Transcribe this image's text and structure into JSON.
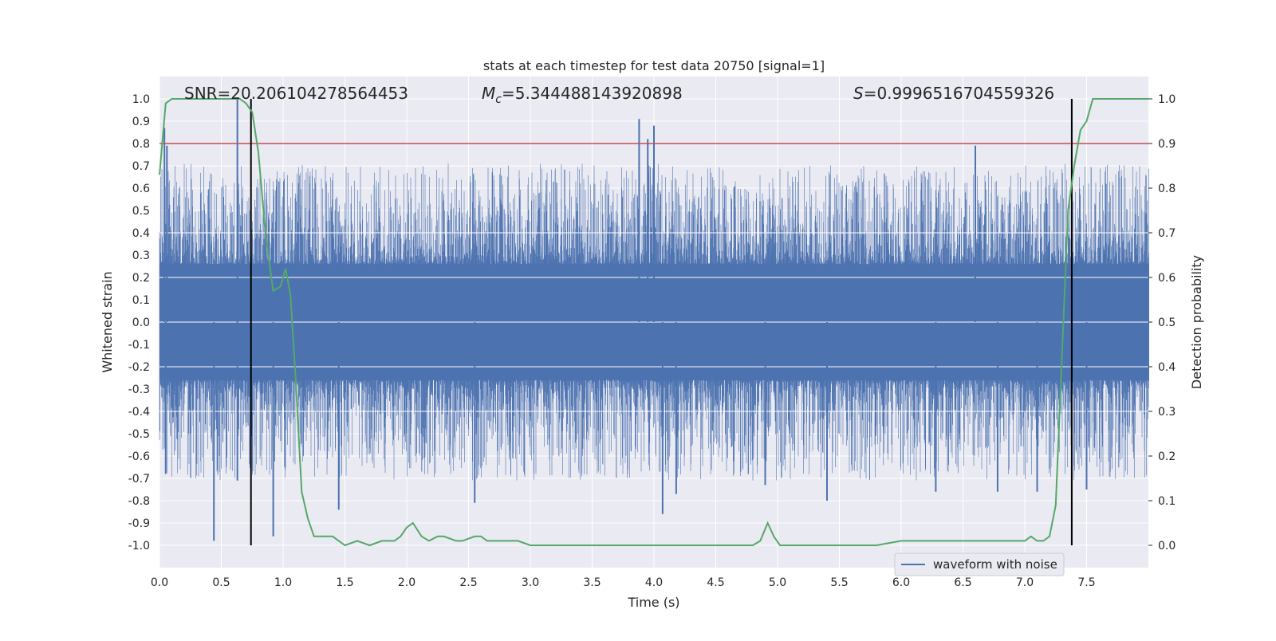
{
  "chart_data": {
    "type": "line",
    "title": "stats at each timestep for test data 20750 [signal=1]",
    "xlabel": "Time (s)",
    "ylabel": "Whitened strain",
    "ylabel_right": "Detection probability",
    "xlim": [
      0.0,
      8.0
    ],
    "ylim": [
      -1.1,
      1.1
    ],
    "ylim_right": [
      -0.05,
      1.05
    ],
    "x_ticks": [
      "0.0",
      "0.5",
      "1.0",
      "1.5",
      "2.0",
      "2.5",
      "3.0",
      "3.5",
      "4.0",
      "4.5",
      "5.0",
      "5.5",
      "6.0",
      "6.5",
      "7.0",
      "7.5"
    ],
    "y_ticks": [
      "-1.0",
      "-0.9",
      "-0.8",
      "-0.7",
      "-0.6",
      "-0.5",
      "-0.4",
      "-0.3",
      "-0.2",
      "-0.1",
      "0.0",
      "0.1",
      "0.2",
      "0.3",
      "0.4",
      "0.5",
      "0.6",
      "0.7",
      "0.8",
      "0.9",
      "1.0"
    ],
    "y_ticks_right": [
      "0.0",
      "0.1",
      "0.2",
      "0.3",
      "0.4",
      "0.5",
      "0.6",
      "0.7",
      "0.8",
      "0.9",
      "1.0"
    ],
    "grid": true,
    "legend_position": "lower-right",
    "annotations": {
      "snr": "SNR=20.206104278564453",
      "mc_symbol": "M",
      "mc_sub": "c",
      "mc_value": "=5.344488143920898",
      "s_symbol": "S",
      "s_value": "=0.9996516704559326"
    },
    "threshold": {
      "axis": "right",
      "value": 0.9
    },
    "vertical_markers": [
      0.74,
      7.38
    ],
    "series": [
      {
        "name": "waveform with noise",
        "axis": "left",
        "style": "dense-noise",
        "core_amplitude": 0.26,
        "spikes": [
          {
            "x": 0.04,
            "y": 0.87
          },
          {
            "x": 0.06,
            "y": 0.79
          },
          {
            "x": 0.05,
            "y": -0.68
          },
          {
            "x": 0.44,
            "y": -0.98
          },
          {
            "x": 0.63,
            "y": 1.0
          },
          {
            "x": 0.63,
            "y": -0.71
          },
          {
            "x": 0.92,
            "y": -0.96
          },
          {
            "x": 1.45,
            "y": -0.84
          },
          {
            "x": 2.55,
            "y": -0.81
          },
          {
            "x": 3.88,
            "y": 0.91
          },
          {
            "x": 3.95,
            "y": 0.82
          },
          {
            "x": 4.0,
            "y": 0.88
          },
          {
            "x": 4.07,
            "y": -0.86
          },
          {
            "x": 4.18,
            "y": -0.77
          },
          {
            "x": 4.9,
            "y": -0.73
          },
          {
            "x": 5.4,
            "y": -0.8
          },
          {
            "x": 6.28,
            "y": -0.76
          },
          {
            "x": 6.6,
            "y": 0.79
          },
          {
            "x": 6.78,
            "y": -0.76
          },
          {
            "x": 7.1,
            "y": -0.76
          },
          {
            "x": 7.5,
            "y": -0.75
          }
        ]
      },
      {
        "name": "",
        "axis": "right",
        "color": "#55a868",
        "x": [
          0.0,
          0.05,
          0.1,
          0.15,
          0.2,
          0.3,
          0.4,
          0.5,
          0.6,
          0.65,
          0.7,
          0.75,
          0.8,
          0.85,
          0.88,
          0.92,
          0.98,
          1.02,
          1.06,
          1.1,
          1.15,
          1.2,
          1.25,
          1.3,
          1.35,
          1.4,
          1.45,
          1.5,
          1.6,
          1.7,
          1.8,
          1.9,
          1.95,
          2.0,
          2.05,
          2.12,
          2.18,
          2.25,
          2.3,
          2.4,
          2.45,
          2.55,
          2.6,
          2.65,
          2.7,
          2.8,
          2.9,
          3.0,
          3.1,
          3.2,
          3.4,
          3.6,
          3.7,
          3.8,
          3.9,
          4.0,
          4.1,
          4.2,
          4.4,
          4.6,
          4.8,
          4.86,
          4.92,
          4.97,
          5.02,
          5.1,
          5.3,
          5.5,
          5.8,
          6.0,
          6.2,
          6.5,
          6.8,
          7.0,
          7.05,
          7.1,
          7.15,
          7.2,
          7.25,
          7.3,
          7.35,
          7.4,
          7.45,
          7.5,
          7.55,
          7.65,
          7.75,
          7.85,
          7.92,
          8.0
        ],
        "y": [
          0.83,
          0.99,
          1.0,
          1.0,
          1.0,
          1.0,
          1.0,
          1.0,
          1.0,
          1.0,
          0.99,
          0.97,
          0.88,
          0.72,
          0.65,
          0.57,
          0.58,
          0.62,
          0.56,
          0.38,
          0.12,
          0.06,
          0.02,
          0.02,
          0.02,
          0.02,
          0.01,
          0.0,
          0.01,
          0.0,
          0.01,
          0.01,
          0.02,
          0.04,
          0.05,
          0.02,
          0.01,
          0.02,
          0.02,
          0.01,
          0.01,
          0.02,
          0.02,
          0.01,
          0.01,
          0.01,
          0.01,
          0.0,
          0.0,
          0.0,
          0.0,
          0.0,
          0.0,
          0.0,
          0.0,
          0.0,
          0.0,
          0.0,
          0.0,
          0.0,
          0.0,
          0.01,
          0.05,
          0.02,
          0.0,
          0.0,
          0.0,
          0.0,
          0.0,
          0.01,
          0.01,
          0.01,
          0.01,
          0.01,
          0.02,
          0.01,
          0.01,
          0.02,
          0.09,
          0.42,
          0.75,
          0.85,
          0.93,
          0.95,
          1.0,
          1.0,
          1.0,
          1.0,
          1.0,
          1.0
        ]
      }
    ],
    "colors": {
      "plot_bg": "#eaeaf2",
      "grid": "#ffffff",
      "waveform": "#4c72b0",
      "probability": "#55a868",
      "threshold": "#c44e52",
      "marker": "#000000"
    }
  }
}
